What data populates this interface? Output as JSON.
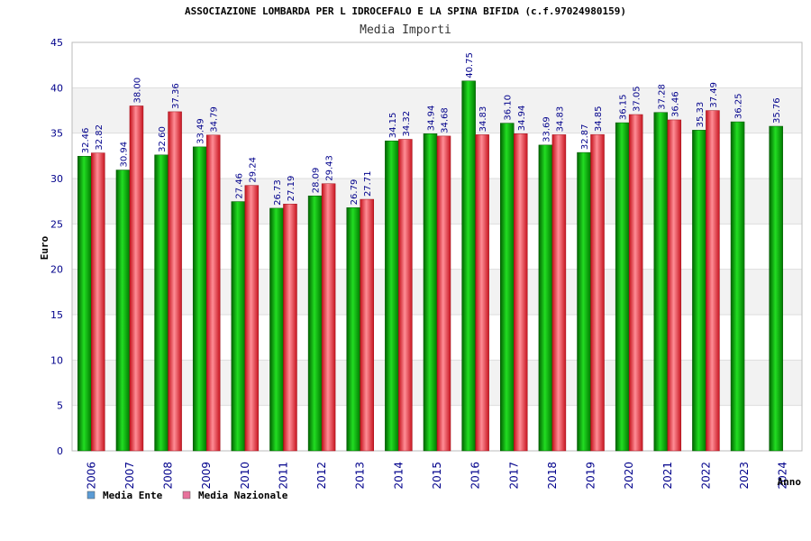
{
  "chart_data": {
    "type": "bar",
    "title": "ASSOCIAZIONE LOMBARDA PER L IDROCEFALO E LA SPINA BIFIDA (c.f.97024980159)",
    "subtitle": "Media Importi",
    "xlabel": "Anno",
    "ylabel": "Euro",
    "ylim": [
      0,
      45
    ],
    "yticks": [
      0,
      5,
      10,
      15,
      20,
      25,
      30,
      35,
      40,
      45
    ],
    "grid": true,
    "legend_position": "bottom-left",
    "categories": [
      "2006",
      "2007",
      "2008",
      "2009",
      "2010",
      "2011",
      "2012",
      "2013",
      "2014",
      "2015",
      "2016",
      "2017",
      "2018",
      "2019",
      "2020",
      "2021",
      "2022",
      "2023",
      "2024"
    ],
    "series": [
      {
        "name": "Media Ente",
        "color": "#00aa00",
        "legend_color": "#5b9bd5",
        "values": [
          32.46,
          30.94,
          32.6,
          33.49,
          27.46,
          26.73,
          28.09,
          26.79,
          34.15,
          34.94,
          40.75,
          36.1,
          33.69,
          32.87,
          36.15,
          37.28,
          35.33,
          36.25,
          35.76
        ],
        "labels": [
          "32.46",
          "30.94",
          "32.60",
          "33.49",
          "27.46",
          "26.73",
          "28.09",
          "26.79",
          "34.15",
          "34.94",
          "40.75",
          "36.10",
          "33.69",
          "32.87",
          "36.15",
          "37.28",
          "35.33",
          "36.25",
          "35.76"
        ]
      },
      {
        "name": "Media Nazionale",
        "color": "#e8303a",
        "legend_color": "#e8739c",
        "values": [
          32.82,
          38.0,
          37.36,
          34.79,
          29.24,
          27.19,
          29.43,
          27.71,
          34.32,
          34.68,
          34.83,
          34.94,
          34.83,
          34.85,
          37.05,
          36.46,
          37.49,
          null,
          null
        ],
        "labels": [
          "32.82",
          "38.00",
          "37.36",
          "34.79",
          "29.24",
          "27.19",
          "29.43",
          "27.71",
          "34.32",
          "34.68",
          "34.83",
          "34.94",
          "34.83",
          "34.85",
          "37.05",
          "36.46",
          "37.49",
          null,
          null
        ]
      }
    ]
  }
}
